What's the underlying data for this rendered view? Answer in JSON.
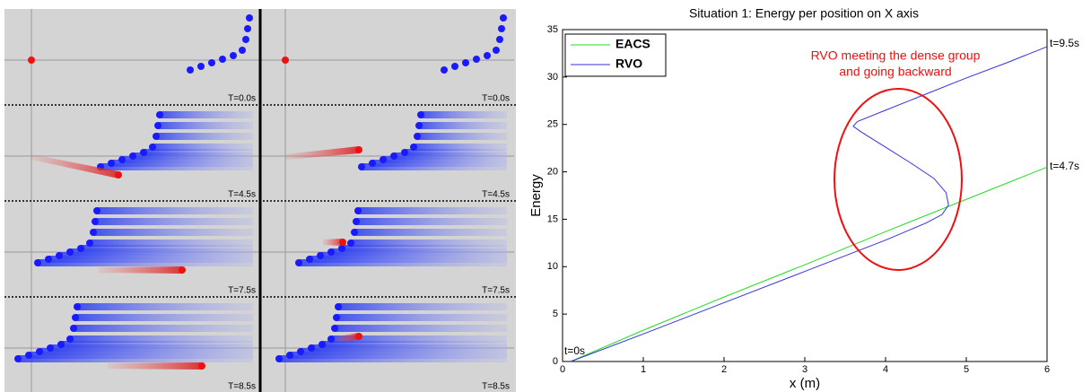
{
  "panels": {
    "time_labels": [
      [
        "T=0.0s",
        "T=0.0s"
      ],
      [
        "T=4.5s",
        "T=4.5s"
      ],
      [
        "T=7.5s",
        "T=7.5s"
      ],
      [
        "T=8.5s",
        "T=8.5s"
      ]
    ]
  },
  "chart_data": {
    "type": "line",
    "title": "Situation 1: Energy per position on X axis",
    "xlabel": "x (m)",
    "ylabel": "Energy",
    "xlim": [
      0,
      6
    ],
    "ylim": [
      0,
      35
    ],
    "xticks": [
      0,
      1,
      2,
      3,
      4,
      5,
      6
    ],
    "yticks": [
      0,
      5,
      10,
      15,
      20,
      25,
      30,
      35
    ],
    "legend": "upper left",
    "series": [
      {
        "name": "EACS",
        "color": "#22dd22",
        "x": [
          0.1,
          1,
          2,
          3,
          4,
          5,
          6
        ],
        "values": [
          0,
          3.3,
          6.8,
          10.2,
          13.7,
          17.1,
          20.5
        ]
      },
      {
        "name": "RVO",
        "color": "#3333dd",
        "x": [
          0.1,
          1,
          2,
          3,
          4,
          4.5,
          4.7,
          4.78,
          4.75,
          4.6,
          4.3,
          4.0,
          3.7,
          3.6,
          3.65,
          4,
          4.5,
          5,
          5.5,
          6
        ],
        "values": [
          0,
          2.9,
          6.2,
          9.5,
          12.8,
          14.6,
          15.5,
          16.5,
          17.8,
          19.3,
          21,
          22.6,
          24.2,
          24.8,
          25.3,
          26.5,
          28.2,
          29.9,
          31.5,
          33.2
        ]
      }
    ],
    "annotations": [
      "t=0s",
      "t=9.5s",
      "t=4.7s",
      "RVO meeting the dense group",
      "and going backward"
    ]
  }
}
